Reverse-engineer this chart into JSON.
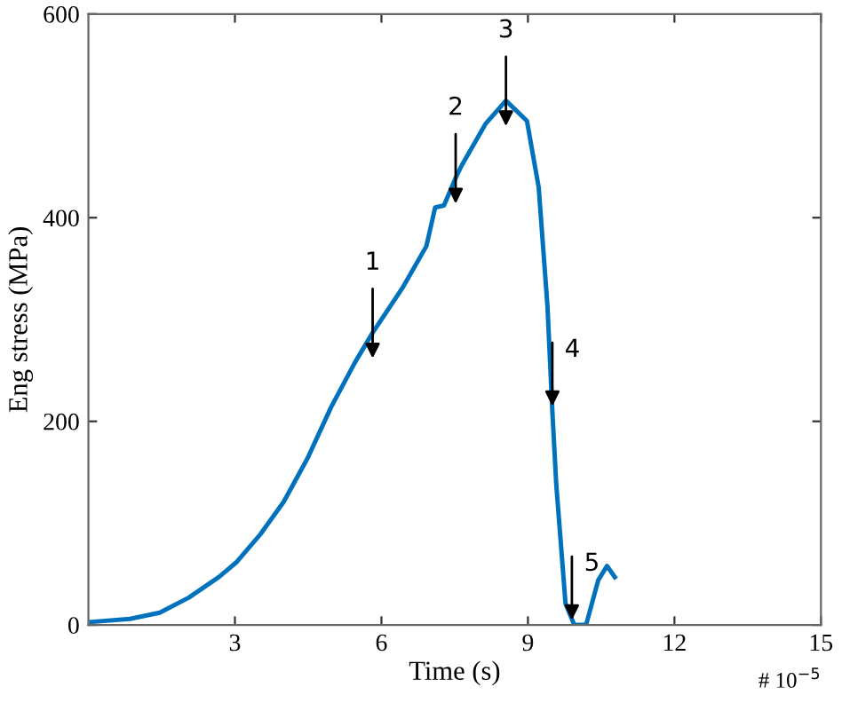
{
  "chart_data": {
    "type": "line",
    "xlabel": "Time (s)",
    "ylabel": "Eng stress (MPa)",
    "xlim": [
      0,
      15
    ],
    "xticks": [
      3,
      6,
      9,
      12,
      15
    ],
    "ylim": [
      0,
      600
    ],
    "yticks": [
      0,
      200,
      400,
      600
    ],
    "grid": false,
    "legend": false,
    "marker": "none",
    "line_style": "solid",
    "series": [
      {
        "color": "#0072bd",
        "x": [
          0.06,
          0.85,
          1.46,
          2.06,
          2.67,
          3.04,
          3.52,
          4.0,
          4.49,
          4.97,
          5.46,
          5.82,
          6.43,
          6.92,
          7.1,
          7.28,
          7.52,
          7.64,
          8.13,
          8.55,
          8.98,
          9.22,
          9.4,
          9.5,
          9.58,
          9.77,
          9.95,
          10.19,
          10.44,
          10.62,
          10.78
        ],
        "values": [
          3,
          6,
          12,
          27,
          47,
          62,
          89,
          121,
          164,
          214,
          258,
          287,
          331,
          372,
          410,
          412,
          439,
          451,
          492,
          515,
          495,
          430,
          313,
          210,
          138,
          21,
          0,
          0,
          44,
          58,
          47
        ]
      }
    ],
    "annotations": [
      {
        "text": "1",
        "x": 5.82,
        "y": 287
      },
      {
        "text": "2",
        "x": 7.52,
        "y": 439
      },
      {
        "text": "3",
        "x": 8.55,
        "y": 515
      },
      {
        "text": "4",
        "x": 9.5,
        "y": 210
      },
      {
        "text": "5",
        "x": 9.9,
        "y": 0
      },
      "# 10$^{−5}$"
    ]
  }
}
